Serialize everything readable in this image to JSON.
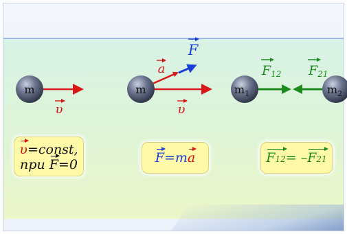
{
  "diagram": {
    "mass_labels": {
      "m_first": "m",
      "m_second": "m",
      "m1": "m",
      "m1_sub": "1",
      "m2": "m",
      "m2_sub": "2"
    },
    "vector_labels": {
      "v1": "υ",
      "a": "a",
      "F": "F",
      "v2": "υ",
      "F12": "F",
      "F12_sub": "12",
      "F21": "F",
      "F21_sub": "21"
    }
  },
  "formulas": {
    "first_law": {
      "v": "υ",
      "const": "=const,",
      "npu": "при",
      "F": "F",
      "zero": "=0"
    },
    "second_law": {
      "F": "F",
      "eq": "=",
      "m": "m",
      "a": "a"
    },
    "third_law": {
      "F12": "F",
      "F12_sub": "12",
      "eq": "= –",
      "F21": "F",
      "F21_sub": "21"
    }
  },
  "colors": {
    "red": "#d81818",
    "blue": "#1a3fd6",
    "green": "#1c8a1c",
    "ball": "#5b6478",
    "formula_bg": "#fff9a8"
  }
}
